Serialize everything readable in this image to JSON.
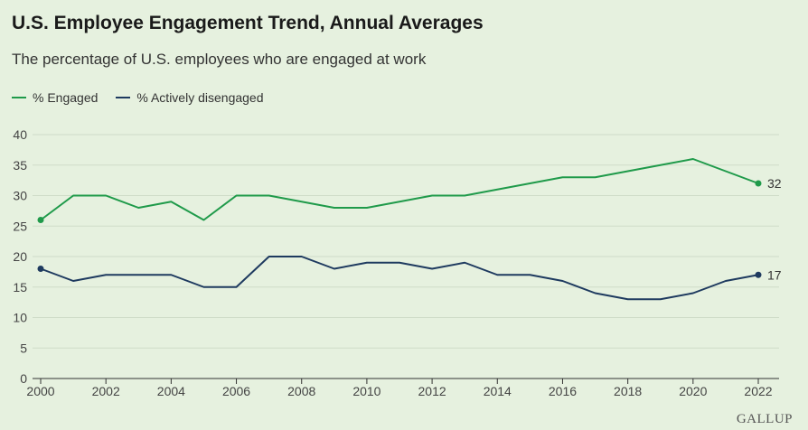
{
  "title": "U.S. Employee Engagement Trend, Annual Averages",
  "subtitle": "The percentage of U.S. employees who are engaged at work",
  "brand": "GALLUP",
  "colors": {
    "engaged": "#1f9a4a",
    "disengaged": "#1e3a5f",
    "grid": "#cfdcc8",
    "axis": "#333333"
  },
  "chart_data": {
    "type": "line",
    "x": [
      2000,
      2001,
      2002,
      2003,
      2004,
      2005,
      2006,
      2007,
      2008,
      2009,
      2010,
      2011,
      2012,
      2013,
      2014,
      2015,
      2016,
      2017,
      2018,
      2019,
      2020,
      2021,
      2022
    ],
    "series": [
      {
        "name": "% Engaged",
        "values": [
          26,
          30,
          30,
          28,
          29,
          26,
          30,
          30,
          29,
          28,
          28,
          29,
          30,
          30,
          31,
          32,
          33,
          33,
          34,
          35,
          36,
          34,
          32
        ],
        "end_label": "32"
      },
      {
        "name": "% Actively disengaged",
        "values": [
          18,
          16,
          17,
          17,
          17,
          15,
          15,
          20,
          20,
          18,
          19,
          19,
          18,
          19,
          17,
          17,
          16,
          14,
          13,
          13,
          14,
          16,
          17
        ],
        "end_label": "17"
      }
    ],
    "x_ticks": [
      "2000",
      "2002",
      "2004",
      "2006",
      "2008",
      "2010",
      "2012",
      "2014",
      "2016",
      "2018",
      "2020",
      "2022"
    ],
    "y_ticks": [
      "0",
      "5",
      "10",
      "15",
      "20",
      "25",
      "30",
      "35",
      "40"
    ],
    "xlim": [
      2000,
      2022
    ],
    "ylim": [
      0,
      40
    ],
    "grid": true,
    "legend": "top-left"
  }
}
